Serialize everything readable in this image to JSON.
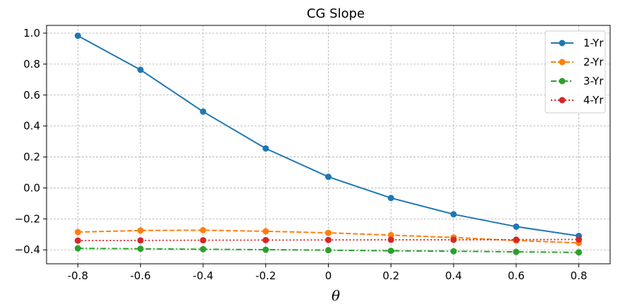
{
  "chart_data": {
    "type": "line",
    "title": "CG Slope",
    "xlabel": "θ",
    "ylabel": "",
    "x": [
      -0.8,
      -0.6,
      -0.4,
      -0.2,
      0,
      0.2,
      0.4,
      0.6,
      0.8
    ],
    "xticks": [
      "-0.8",
      "-0.6",
      "-0.4",
      "-0.2",
      "0",
      "0.2",
      "0.4",
      "0.6",
      "0.8"
    ],
    "yticks": [
      "−0.4",
      "−0.2",
      "0.0",
      "0.2",
      "0.4",
      "0.6",
      "0.8",
      "1.0"
    ],
    "ytick_values": [
      -0.4,
      -0.2,
      0.0,
      0.2,
      0.4,
      0.6,
      0.8,
      1.0
    ],
    "xlim": [
      -0.9,
      0.9
    ],
    "ylim": [
      -0.49,
      1.05
    ],
    "grid": true,
    "legend_position": "top-right",
    "series": [
      {
        "name": "1-Yr",
        "color": "#1f77b4",
        "linestyle": "solid",
        "marker": "circle",
        "values": [
          0.983,
          0.763,
          0.493,
          0.255,
          0.072,
          -0.065,
          -0.17,
          -0.25,
          -0.31
        ]
      },
      {
        "name": "2-Yr",
        "color": "#ff7f0e",
        "linestyle": "dashed",
        "marker": "circle",
        "values": [
          -0.285,
          -0.275,
          -0.273,
          -0.28,
          -0.29,
          -0.305,
          -0.32,
          -0.34,
          -0.355
        ]
      },
      {
        "name": "3-Yr",
        "color": "#2ca02c",
        "linestyle": "dashdot",
        "marker": "circle",
        "values": [
          -0.39,
          -0.393,
          -0.396,
          -0.399,
          -0.402,
          -0.406,
          -0.409,
          -0.413,
          -0.416
        ]
      },
      {
        "name": "4-Yr",
        "color": "#d62728",
        "linestyle": "dotted",
        "marker": "circle",
        "values": [
          -0.34,
          -0.339,
          -0.338,
          -0.337,
          -0.336,
          -0.335,
          -0.335,
          -0.334,
          -0.333
        ]
      }
    ]
  }
}
